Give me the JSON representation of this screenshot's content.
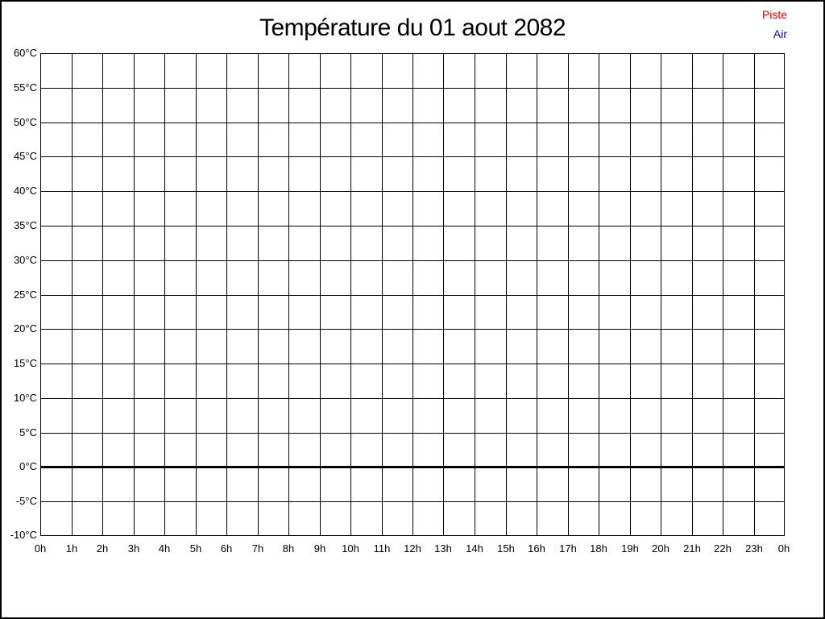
{
  "chart_data": {
    "type": "line",
    "title": "Température du 01 aout 2082",
    "xlabel": "",
    "ylabel": "",
    "xlim": [
      0,
      24
    ],
    "ylim": [
      -10,
      60
    ],
    "grid": true,
    "grid_color": "#000000",
    "background_color": "#ffffff",
    "x_tick_labels": [
      "0h",
      "1h",
      "2h",
      "3h",
      "4h",
      "5h",
      "6h",
      "7h",
      "8h",
      "9h",
      "10h",
      "11h",
      "12h",
      "13h",
      "14h",
      "15h",
      "16h",
      "17h",
      "18h",
      "19h",
      "20h",
      "21h",
      "22h",
      "23h",
      "0h"
    ],
    "y_ticks": [
      60,
      55,
      50,
      45,
      40,
      35,
      30,
      25,
      20,
      15,
      10,
      5,
      0,
      -5,
      -10
    ],
    "y_tick_suffix": "°C",
    "zero_line": {
      "value": 0,
      "color": "#000000",
      "width": 3
    },
    "legend_position": "top-right",
    "legend": [
      {
        "label": "Piste",
        "color": "#ff0000"
      },
      {
        "label": "Air",
        "color": "#0000ee"
      }
    ],
    "series": [
      {
        "name": "Piste",
        "color": "#ff0000",
        "x": [],
        "values": []
      },
      {
        "name": "Air",
        "color": "#0000ee",
        "x": [],
        "values": []
      }
    ]
  }
}
